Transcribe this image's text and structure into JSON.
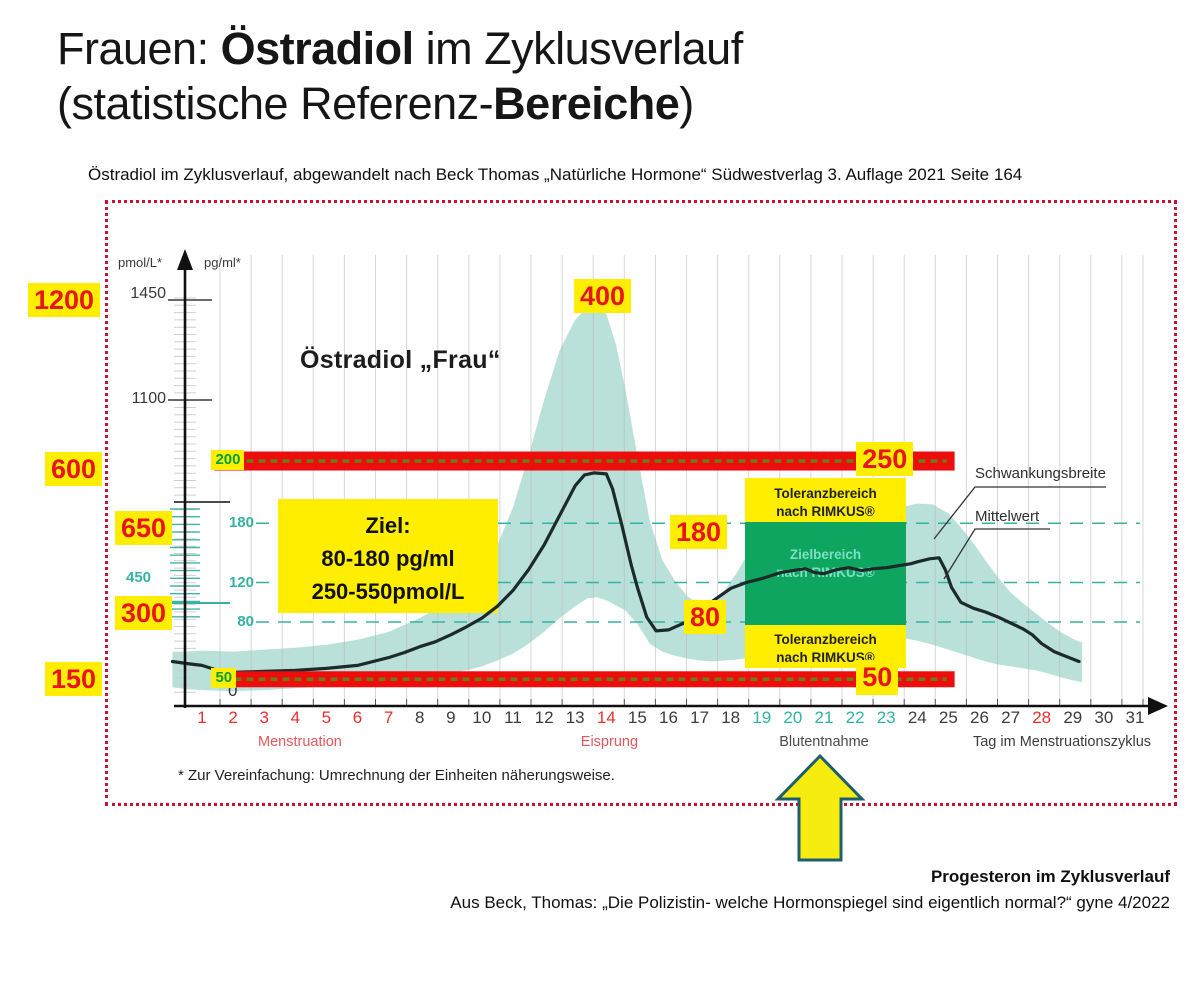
{
  "title": {
    "pre": "Frauen: ",
    "bold": "Östradiol",
    "post": " im Zyklusverlauf",
    "line2_pre": "(statistische Referenz-",
    "line2_bold": "Bereiche",
    "line2_post": ")"
  },
  "subtitle": "Östradiol im Zyklusverlauf, abgewandelt nach Beck Thomas „Natürliche Hormone“ Südwestverlag 3. Auflage 2021 Seite 164",
  "footnote": "* Zur Vereinfachung: Umrechnung der Einheiten näherungsweise.",
  "footer": {
    "bold_line": "Progesteron im Zyklusverlauf",
    "source_line": "Aus Beck, Thomas: „Die Polizistin- welche Hormonspiegel sind eigentlich normal?“ gyne 4/2022"
  },
  "side_labels": {
    "l1200": "1200",
    "l600": "600",
    "l650": "650",
    "l450": "450",
    "l300": "300",
    "l150": "150"
  },
  "chart_data": {
    "type": "area+line",
    "title": "Östradiol „Frau“",
    "y_axis": {
      "unit_left": "pmol/L*",
      "unit_right": "pg/ml*",
      "pg_range": [
        0,
        420
      ],
      "pmol_ticks": [
        {
          "label": "1450",
          "pg": 412
        },
        {
          "label": "1100",
          "pg": 306
        }
      ],
      "pg_guides": [
        {
          "label": "180",
          "pg": 180
        },
        {
          "label": "120",
          "pg": 120
        },
        {
          "label": "80",
          "pg": 80
        }
      ],
      "zero_label": "0"
    },
    "x_axis": {
      "label": "Tag im Menstruationszyklus",
      "days": [
        1,
        2,
        3,
        4,
        5,
        6,
        7,
        8,
        9,
        10,
        11,
        12,
        13,
        14,
        15,
        16,
        17,
        18,
        19,
        20,
        21,
        22,
        23,
        24,
        25,
        26,
        27,
        28,
        29,
        30,
        31
      ],
      "red_days": [
        1,
        2,
        3,
        4,
        5,
        6,
        7,
        14,
        28
      ],
      "teal_days": [
        19,
        20,
        21,
        22,
        23
      ],
      "phase_labels": [
        {
          "text": "Menstruation",
          "day": 4.15,
          "color": "red"
        },
        {
          "text": "Eisprung",
          "day": 14.1,
          "color": "red"
        },
        {
          "text": "Blutentnahme",
          "day": 21.0,
          "color": "dark"
        }
      ]
    },
    "series": [
      {
        "name": "Schwankungsbreite",
        "type": "band",
        "color": "#b9e1d9",
        "points": [
          [
            0.05,
            14,
            50
          ],
          [
            0.5,
            12,
            50
          ],
          [
            1,
            11,
            51
          ],
          [
            2,
            10,
            50
          ],
          [
            3,
            11,
            52
          ],
          [
            4,
            13,
            54
          ],
          [
            5,
            15,
            57
          ],
          [
            6,
            17,
            62
          ],
          [
            7,
            20,
            70
          ],
          [
            8,
            24,
            84
          ],
          [
            9,
            28,
            102
          ],
          [
            9.5,
            31,
            115
          ],
          [
            10,
            35,
            132
          ],
          [
            10.5,
            41,
            158
          ],
          [
            11,
            48,
            196
          ],
          [
            11.5,
            58,
            248
          ],
          [
            12,
            70,
            305
          ],
          [
            12.5,
            84,
            355
          ],
          [
            13,
            96,
            386
          ],
          [
            13.4,
            104,
            399
          ],
          [
            13.7,
            105,
            400
          ],
          [
            14,
            102,
            392
          ],
          [
            14.3,
            97,
            362
          ],
          [
            14.6,
            92,
            318
          ],
          [
            15,
            78,
            248
          ],
          [
            15.4,
            58,
            182
          ],
          [
            15.8,
            50,
            143
          ],
          [
            16.2,
            46,
            122
          ],
          [
            16.6,
            43,
            106
          ],
          [
            17,
            41,
            98
          ],
          [
            17.4,
            40,
            101
          ],
          [
            17.8,
            41,
            112
          ],
          [
            18.2,
            42,
            130
          ],
          [
            18.6,
            44,
            152
          ],
          [
            19,
            46,
            170
          ],
          [
            19.5,
            49,
            182
          ],
          [
            20,
            52,
            191
          ],
          [
            20.5,
            55,
            194
          ],
          [
            21,
            58,
            194
          ],
          [
            21.5,
            60,
            190
          ],
          [
            22,
            62,
            187
          ],
          [
            22.5,
            64,
            188
          ],
          [
            23,
            66,
            191
          ],
          [
            23.5,
            64,
            196
          ],
          [
            24,
            61,
            200
          ],
          [
            24.5,
            57,
            199
          ],
          [
            25,
            52,
            190
          ],
          [
            25.4,
            48,
            176
          ],
          [
            25.8,
            44,
            160
          ],
          [
            26.2,
            40,
            142
          ],
          [
            26.6,
            37,
            125
          ],
          [
            27,
            35,
            110
          ],
          [
            27.4,
            33,
            99
          ],
          [
            27.8,
            31,
            89
          ],
          [
            28.2,
            28,
            79
          ],
          [
            28.6,
            24,
            70
          ],
          [
            29,
            21,
            63
          ],
          [
            29.3,
            19,
            59
          ]
        ]
      },
      {
        "name": "Mittelwert",
        "type": "line",
        "color": "#1c2b29",
        "points": [
          [
            0.05,
            40
          ],
          [
            0.5,
            38
          ],
          [
            1,
            36
          ],
          [
            1.5,
            31
          ],
          [
            2,
            29
          ],
          [
            2.5,
            29.5
          ],
          [
            3,
            30
          ],
          [
            4,
            31
          ],
          [
            5,
            33
          ],
          [
            6,
            36
          ],
          [
            7,
            44
          ],
          [
            7.5,
            49
          ],
          [
            8,
            55
          ],
          [
            8.5,
            60
          ],
          [
            9,
            67
          ],
          [
            9.5,
            75
          ],
          [
            10,
            84
          ],
          [
            10.5,
            96
          ],
          [
            11,
            112
          ],
          [
            11.5,
            133
          ],
          [
            12,
            158
          ],
          [
            12.5,
            188
          ],
          [
            13,
            218
          ],
          [
            13.3,
            229
          ],
          [
            13.6,
            231
          ],
          [
            14,
            230
          ],
          [
            14.2,
            215
          ],
          [
            14.5,
            178
          ],
          [
            14.8,
            138
          ],
          [
            15,
            115
          ],
          [
            15.3,
            85
          ],
          [
            15.6,
            71
          ],
          [
            16,
            72
          ],
          [
            16.5,
            79
          ],
          [
            17,
            92
          ],
          [
            17.5,
            103
          ],
          [
            18,
            114
          ],
          [
            18.5,
            120
          ],
          [
            19,
            124
          ],
          [
            19.3,
            127
          ],
          [
            19.6,
            130
          ],
          [
            20,
            132
          ],
          [
            20.4,
            134
          ],
          [
            20.7,
            130
          ],
          [
            21,
            129
          ],
          [
            21.4,
            133
          ],
          [
            21.8,
            135
          ],
          [
            22.2,
            132
          ],
          [
            22.6,
            134
          ],
          [
            23,
            135
          ],
          [
            23.4,
            137
          ],
          [
            23.8,
            139
          ],
          [
            24,
            141
          ],
          [
            24.4,
            144
          ],
          [
            24.7,
            145
          ],
          [
            24.9,
            133
          ],
          [
            25.1,
            115
          ],
          [
            25.4,
            100
          ],
          [
            25.8,
            94
          ],
          [
            26.2,
            90
          ],
          [
            26.6,
            85
          ],
          [
            27,
            79
          ],
          [
            27.4,
            73
          ],
          [
            27.7,
            67
          ],
          [
            28,
            58
          ],
          [
            28.4,
            50
          ],
          [
            28.8,
            45
          ],
          [
            29.2,
            40
          ]
        ]
      }
    ],
    "reference_bars": [
      {
        "pg": 243,
        "day_from": 1.4,
        "day_to": 25.2,
        "left_label": "200",
        "right_label": "250"
      },
      {
        "pg": 22,
        "day_from": 1.4,
        "day_to": 25.2,
        "left_label": "50",
        "right_label": "50"
      }
    ],
    "value_labels": {
      "peak": "400",
      "mid_180": "180",
      "mid_80": "80"
    },
    "rimkus": {
      "tol_top": [
        "Toleranzbereich",
        "nach RIMKUS®"
      ],
      "ziel": [
        "Zielbereich",
        "nach RIMKUS®"
      ],
      "tol_bottom": [
        "Toleranzbereich",
        "nach RIMKUS®"
      ]
    },
    "target_box": {
      "line1": "Ziel:",
      "line2": "80-180 pg/ml",
      "line3": "250-550pmol/L"
    },
    "legend": {
      "band": "Schwankungsbreite",
      "line": "Mittelwert"
    },
    "colors": {
      "band": "#b9e1d9",
      "line": "#1c2b29",
      "bar_red": "#ee0d0d",
      "bar_dash": "#6d7c10",
      "label_red": "#e8141e",
      "label_green": "#00a03c",
      "teal": "#35b2a2",
      "yellow": "#ffee00",
      "green_box": "#0da55f",
      "arrow_fill": "#f6ec0f",
      "arrow_stroke": "#1d5f6e",
      "border_red": "#c41430"
    }
  }
}
